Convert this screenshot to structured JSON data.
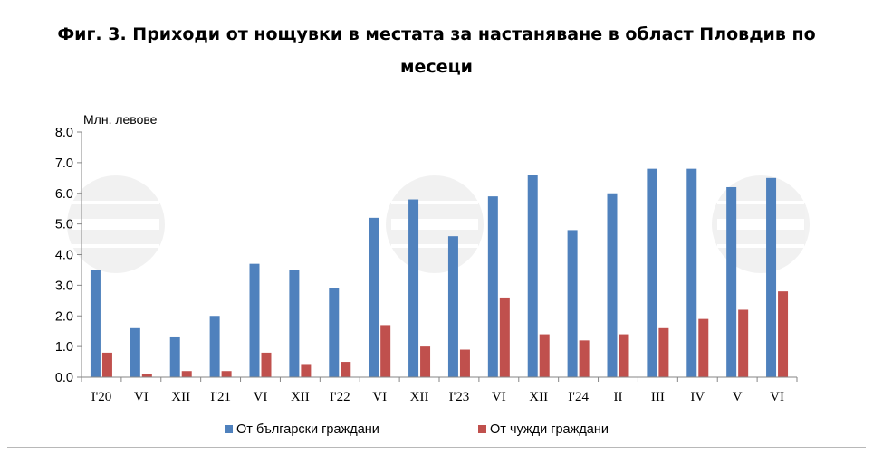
{
  "chart_data": {
    "type": "bar",
    "title_line1": "Фиг. 3. Приходи от нощувки в местата за настаняване в област Пловдив по",
    "title_line2": "месеци",
    "ylabel": "Млн. левове",
    "xlabel": "",
    "ylim": [
      0,
      8
    ],
    "ytick_labels": [
      "0.0",
      "1.0",
      "2.0",
      "3.0",
      "4.0",
      "5.0",
      "6.0",
      "7.0",
      "8.0"
    ],
    "grid": false,
    "legend_position": "bottom",
    "categories": [
      "I'20",
      "VI",
      "XII",
      "I'21",
      "VI",
      "XII",
      "I'22",
      "VI",
      "XII",
      "I'23",
      "VI",
      "XII",
      "I'24",
      "II",
      "III",
      "IV",
      "V",
      "VI"
    ],
    "series": [
      {
        "name": "От български граждани",
        "color": "#4f81bd",
        "values": [
          3.5,
          1.6,
          1.3,
          2.0,
          3.7,
          3.5,
          2.9,
          5.2,
          5.8,
          4.6,
          5.9,
          6.6,
          4.8,
          6.0,
          6.8,
          6.8,
          6.2,
          6.5
        ]
      },
      {
        "name": "От чужди граждани",
        "color": "#c0504d",
        "values": [
          0.8,
          0.1,
          0.2,
          0.2,
          0.8,
          0.4,
          0.5,
          1.7,
          1.0,
          0.9,
          2.6,
          1.4,
          1.2,
          1.4,
          1.6,
          1.9,
          2.2,
          2.8
        ]
      }
    ]
  }
}
